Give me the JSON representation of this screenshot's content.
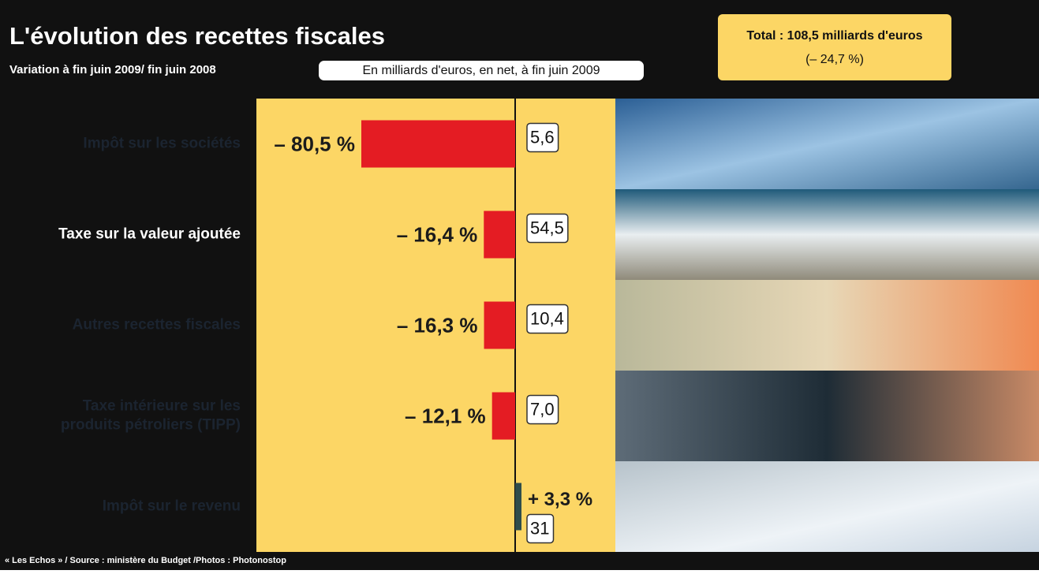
{
  "chart_data": {
    "type": "bar",
    "title": "L'évolution des recettes fiscales",
    "subtitle": "Variation à fin juin 2009/ fin juin 2008",
    "unit_note": "En milliards d'euros, en net, à fin juin 2009",
    "total_label": "Total : 108,5 milliards d'euros",
    "total_change": "(– 24,7 %)",
    "source": "« Les Echos » / Source : ministère du Budget /Photos : Photonostop",
    "categories": [
      "Impôt sur les sociétés",
      "Taxe sur la valeur ajoutée",
      "Autres recettes fiscales",
      "Taxe intérieure sur les produits pétroliers (TIPP)",
      "Impôt sur le revenu"
    ],
    "values": [
      -80.5,
      -16.4,
      -16.3,
      -12.1,
      3.3
    ],
    "value_labels": [
      "– 80,5 %",
      "– 16,4 %",
      "– 16,3 %",
      "– 12,1 %",
      "+ 3,3 %"
    ],
    "color": "#e41c23",
    "positive_color": "#2f4d4b",
    "amounts": {
      "values": [
        5.6,
        54.5,
        10.4,
        7.0,
        31
      ],
      "value_labels": [
        "5,6",
        "54,5",
        "10,4",
        "7,0",
        "31"
      ]
    }
  }
}
